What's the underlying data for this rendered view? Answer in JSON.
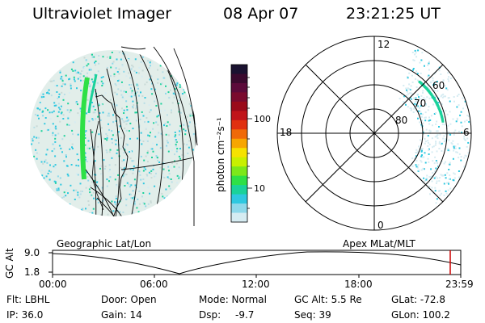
{
  "header": {
    "title": "Ultraviolet Imager",
    "date": "08 Apr 07",
    "time": "23:21:25 UT"
  },
  "colorbar": {
    "unit_label": "photon cm⁻²s⁻¹",
    "ticks": [
      "100",
      "10"
    ],
    "colors": [
      "#1a1230",
      "#3a0a2e",
      "#5c0a3a",
      "#7a0a2e",
      "#9a0a1a",
      "#c0141a",
      "#e03010",
      "#f06a08",
      "#f7a600",
      "#f5e200",
      "#c8f000",
      "#7ce81a",
      "#2ee046",
      "#1ad29a",
      "#2ec8e0",
      "#8ed8ea",
      "#d6ecf2"
    ]
  },
  "left_panel": {
    "caption": "Geographic Lat/Lon"
  },
  "right_panel": {
    "caption": "Apex MLat/MLT",
    "mlt_labels": {
      "top": "12",
      "bottom": "0",
      "left": "18",
      "right": "6"
    },
    "lat_labels": [
      "60",
      "70",
      "80"
    ]
  },
  "timeline": {
    "axis_label": "GC Alt",
    "y_ticks": [
      "9.0",
      "1.8"
    ],
    "x_ticks": [
      "00:00",
      "06:00",
      "12:00",
      "18:00",
      "23:59"
    ],
    "marker_color": "#cc0000"
  },
  "status": {
    "filter": "Flt: LBHL",
    "ip": "IP: 36.0",
    "door": "Door: Open",
    "gain": "Gain: 14",
    "mode": "Mode: Normal",
    "dsp_label": "Dsp:",
    "dsp_value": "-9.7",
    "gc_alt": "GC Alt: 5.5 Re",
    "seq": "Seq: 39",
    "glat": "GLat: -72.8",
    "glon": "GLon: 100.2"
  }
}
